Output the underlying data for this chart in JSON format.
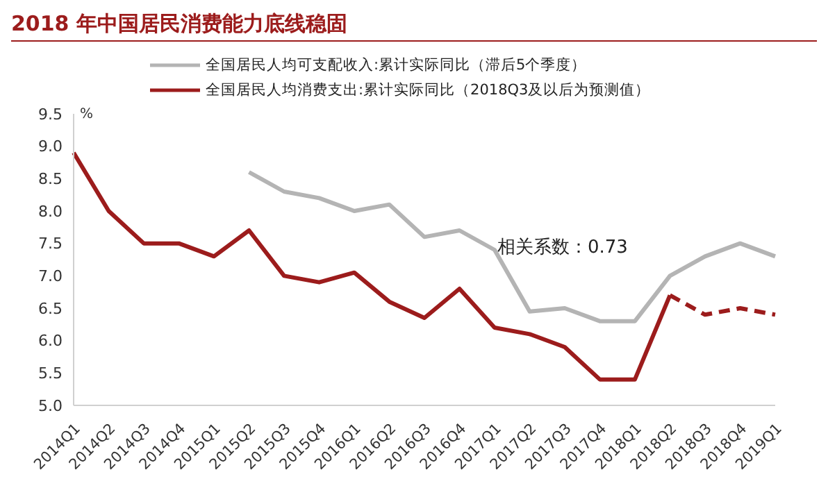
{
  "chart_data": {
    "type": "line",
    "title": "2018 年中国居民消费能力底线稳固",
    "ylabel": "%",
    "categories": [
      "2014Q1",
      "2014Q2",
      "2014Q3",
      "2014Q4",
      "2015Q1",
      "2015Q2",
      "2015Q3",
      "2015Q4",
      "2016Q1",
      "2016Q2",
      "2016Q3",
      "2016Q4",
      "2017Q1",
      "2017Q2",
      "2017Q3",
      "2017Q4",
      "2018Q1",
      "2018Q2",
      "2018Q3",
      "2018Q4",
      "2019Q1"
    ],
    "series": [
      {
        "name": "全国居民人均可支配收入:累计实际同比（滞后5个季度）",
        "color": "#b4b4b4",
        "values": [
          null,
          null,
          null,
          null,
          null,
          8.6,
          8.3,
          8.2,
          8.0,
          8.1,
          7.6,
          7.7,
          7.4,
          6.45,
          6.5,
          6.3,
          6.3,
          7.0,
          7.3,
          7.5,
          7.3
        ]
      },
      {
        "name": "全国居民人均消费支出:累计实际同比（2018Q3及以后为预测值）",
        "color": "#9c1c1c",
        "values": [
          8.9,
          8.0,
          7.5,
          7.5,
          7.3,
          7.7,
          7.0,
          6.9,
          7.05,
          6.6,
          6.35,
          6.8,
          6.2,
          6.1,
          5.9,
          5.4,
          5.4,
          6.7,
          null,
          null,
          null
        ]
      },
      {
        "color": "#9c1c1c",
        "line_style": "dashed",
        "values": [
          null,
          null,
          null,
          null,
          null,
          null,
          null,
          null,
          null,
          null,
          null,
          null,
          null,
          null,
          null,
          null,
          null,
          6.7,
          6.4,
          6.5,
          6.4
        ]
      }
    ],
    "ylim": [
      5,
      9.5
    ],
    "yticks": [
      {
        "value": 5,
        "label": "5.0"
      },
      {
        "value": 5.5,
        "label": "5.5"
      },
      {
        "value": 6,
        "label": "6.0"
      },
      {
        "value": 6.5,
        "label": "6.5"
      },
      {
        "value": 7,
        "label": "7.0"
      },
      {
        "value": 7.5,
        "label": "7.5"
      },
      {
        "value": 8,
        "label": "8.0"
      },
      {
        "value": 8.5,
        "label": "8.5"
      },
      {
        "value": 9,
        "label": "9.0"
      },
      {
        "value": 9.5,
        "label": "9.5"
      }
    ],
    "legend": "top",
    "marker": "none",
    "line_style": "solid",
    "annotations": [
      "相关系数：0.73"
    ]
  }
}
